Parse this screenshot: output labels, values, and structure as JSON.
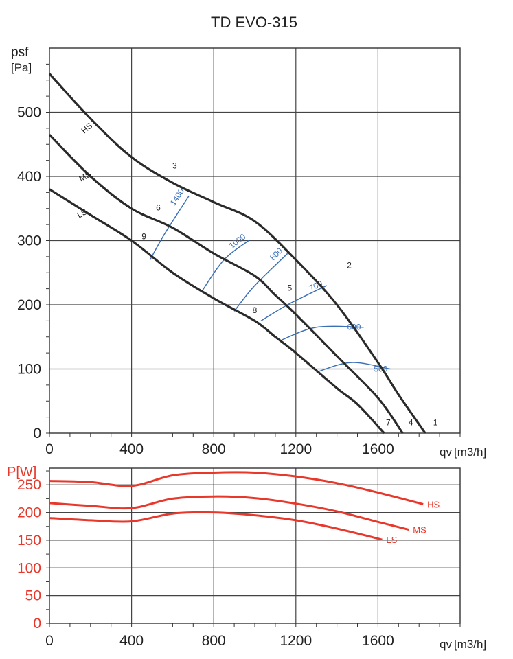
{
  "chart_data": [
    {
      "type": "line",
      "title": "TD EVO-315",
      "ylabel": "psf",
      "yunit": "[Pa]",
      "xlabel": "qv",
      "xunit": "[m3/h]",
      "xlim": [
        0,
        2000
      ],
      "ylim": [
        0,
        600
      ],
      "xticks": [
        0,
        400,
        800,
        1200,
        1600
      ],
      "yticks": [
        0,
        100,
        200,
        300,
        400,
        500
      ],
      "grid": true,
      "series": [
        {
          "name": "HS",
          "x": [
            0,
            200,
            400,
            600,
            800,
            1000,
            1200,
            1400,
            1600,
            1700,
            1830
          ],
          "y": [
            560,
            490,
            430,
            390,
            360,
            330,
            270,
            200,
            110,
            60,
            0
          ]
        },
        {
          "name": "MS",
          "x": [
            0,
            200,
            400,
            600,
            800,
            1000,
            1100,
            1200,
            1400,
            1600,
            1720
          ],
          "y": [
            465,
            400,
            350,
            320,
            280,
            245,
            215,
            185,
            120,
            55,
            0
          ]
        },
        {
          "name": "LS",
          "x": [
            0,
            200,
            400,
            600,
            800,
            1000,
            1100,
            1200,
            1400,
            1500,
            1630
          ],
          "y": [
            380,
            340,
            300,
            250,
            210,
            175,
            150,
            125,
            70,
            45,
            0
          ]
        }
      ],
      "rpm_lines": [
        {
          "label": "1400",
          "x": [
            490,
            560,
            680
          ],
          "y": [
            270,
            310,
            370
          ]
        },
        {
          "label": "1000",
          "x": [
            740,
            850,
            970
          ],
          "y": [
            220,
            270,
            300
          ]
        },
        {
          "label": "800",
          "x": [
            900,
            1000,
            1160
          ],
          "y": [
            190,
            230,
            280
          ]
        },
        {
          "label": "700",
          "x": [
            1030,
            1160,
            1350
          ],
          "y": [
            175,
            200,
            230
          ]
        },
        {
          "label": "600",
          "x": [
            1130,
            1300,
            1530
          ],
          "y": [
            145,
            165,
            165
          ]
        },
        {
          "label": "500",
          "x": [
            1300,
            1470,
            1660
          ],
          "y": [
            95,
            110,
            100
          ]
        }
      ],
      "point_labels": [
        {
          "label": "1",
          "x": 1880,
          "y": 10
        },
        {
          "label": "2",
          "x": 1460,
          "y": 255
        },
        {
          "label": "3",
          "x": 610,
          "y": 410
        },
        {
          "label": "4",
          "x": 1760,
          "y": 10
        },
        {
          "label": "5",
          "x": 1170,
          "y": 220
        },
        {
          "label": "6",
          "x": 530,
          "y": 345
        },
        {
          "label": "7",
          "x": 1650,
          "y": 10
        },
        {
          "label": "8",
          "x": 1000,
          "y": 185
        },
        {
          "label": "9",
          "x": 460,
          "y": 300
        }
      ]
    },
    {
      "type": "line",
      "ylabel": "P[W]",
      "xlabel": "qv",
      "xunit": "[m3/h]",
      "xlim": [
        0,
        2000
      ],
      "ylim": [
        0,
        280
      ],
      "xticks": [
        0,
        400,
        800,
        1200,
        1600
      ],
      "yticks": [
        0,
        50,
        100,
        150,
        200,
        250
      ],
      "grid": true,
      "series": [
        {
          "name": "HS",
          "x": [
            0,
            200,
            400,
            600,
            800,
            1000,
            1200,
            1400,
            1600,
            1820
          ],
          "y": [
            257,
            255,
            248,
            267,
            272,
            272,
            265,
            253,
            236,
            215
          ]
        },
        {
          "name": "MS",
          "x": [
            0,
            200,
            400,
            600,
            800,
            1000,
            1200,
            1400,
            1600,
            1750
          ],
          "y": [
            217,
            212,
            208,
            225,
            229,
            226,
            216,
            202,
            183,
            169
          ]
        },
        {
          "name": "LS",
          "x": [
            0,
            200,
            400,
            600,
            800,
            1000,
            1200,
            1400,
            1620
          ],
          "y": [
            190,
            186,
            184,
            198,
            200,
            195,
            186,
            171,
            151
          ]
        }
      ]
    }
  ],
  "colors": {
    "pressure": "#2a2a2a",
    "rpm": "#3b6fb6",
    "power": "#e8382b",
    "grid": "#444444"
  }
}
